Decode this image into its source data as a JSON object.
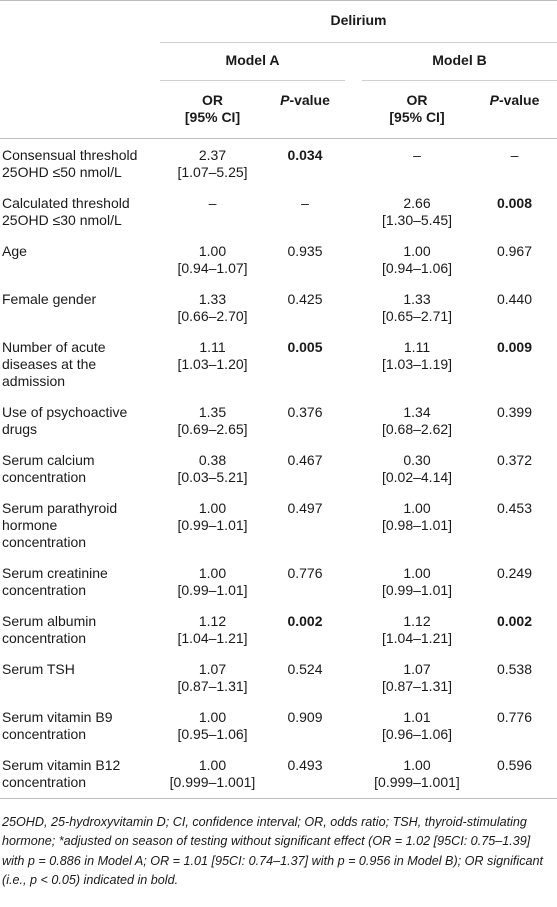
{
  "header": {
    "group": "Delirium",
    "model_a": "Model A",
    "model_b": "Model B",
    "or_label_line1": "OR",
    "or_label_line2": "[95% CI]",
    "p_value_label_p": "P",
    "p_value_label_rest": "-value"
  },
  "rows": [
    {
      "label1": "Consensual threshold",
      "label2": "25OHD ≤50 nmol/L",
      "label3": "",
      "a_or": "2.37",
      "a_ci": "[1.07–5.25]",
      "a_p": "0.034",
      "a_p_bold": true,
      "b_or": "–",
      "b_ci": "",
      "b_p": "–",
      "b_p_bold": false
    },
    {
      "label1": "Calculated threshold",
      "label2": "25OHD ≤30 nmol/L",
      "label3": "",
      "a_or": "–",
      "a_ci": "",
      "a_p": "–",
      "a_p_bold": false,
      "b_or": "2.66",
      "b_ci": "[1.30–5.45]",
      "b_p": "0.008",
      "b_p_bold": true
    },
    {
      "label1": "Age",
      "label2": "",
      "label3": "",
      "a_or": "1.00",
      "a_ci": "[0.94–1.07]",
      "a_p": "0.935",
      "a_p_bold": false,
      "b_or": "1.00",
      "b_ci": "[0.94–1.06]",
      "b_p": "0.967",
      "b_p_bold": false
    },
    {
      "label1": "Female gender",
      "label2": "",
      "label3": "",
      "a_or": "1.33",
      "a_ci": "[0.66–2.70]",
      "a_p": "0.425",
      "a_p_bold": false,
      "b_or": "1.33",
      "b_ci": "[0.65–2.71]",
      "b_p": "0.440",
      "b_p_bold": false
    },
    {
      "label1": "Number of acute",
      "label2": "diseases at the",
      "label3": "admission",
      "a_or": "1.11",
      "a_ci": "[1.03–1.20]",
      "a_p": "0.005",
      "a_p_bold": true,
      "b_or": "1.11",
      "b_ci": "[1.03–1.19]",
      "b_p": "0.009",
      "b_p_bold": true
    },
    {
      "label1": "Use of psychoactive",
      "label2": "drugs",
      "label3": "",
      "a_or": "1.35",
      "a_ci": "[0.69–2.65]",
      "a_p": "0.376",
      "a_p_bold": false,
      "b_or": "1.34",
      "b_ci": "[0.68–2.62]",
      "b_p": "0.399",
      "b_p_bold": false
    },
    {
      "label1": "Serum calcium",
      "label2": "concentration",
      "label3": "",
      "a_or": "0.38",
      "a_ci": "[0.03–5.21]",
      "a_p": "0.467",
      "a_p_bold": false,
      "b_or": "0.30",
      "b_ci": "[0.02–4.14]",
      "b_p": "0.372",
      "b_p_bold": false
    },
    {
      "label1": "Serum parathyroid",
      "label2": "hormone",
      "label3": "concentration",
      "a_or": "1.00",
      "a_ci": "[0.99–1.01]",
      "a_p": "0.497",
      "a_p_bold": false,
      "b_or": "1.00",
      "b_ci": "[0.98–1.01]",
      "b_p": "0.453",
      "b_p_bold": false
    },
    {
      "label1": "Serum creatinine",
      "label2": "concentration",
      "label3": "",
      "a_or": "1.00",
      "a_ci": "[0.99–1.01]",
      "a_p": "0.776",
      "a_p_bold": false,
      "b_or": "1.00",
      "b_ci": "[0.99–1.01]",
      "b_p": "0.249",
      "b_p_bold": false
    },
    {
      "label1": "Serum albumin",
      "label2": "concentration",
      "label3": "",
      "a_or": "1.12",
      "a_ci": "[1.04–1.21]",
      "a_p": "0.002",
      "a_p_bold": true,
      "b_or": "1.12",
      "b_ci": "[1.04–1.21]",
      "b_p": "0.002",
      "b_p_bold": true
    },
    {
      "label1": "Serum TSH",
      "label2": "",
      "label3": "",
      "a_or": "1.07",
      "a_ci": "[0.87–1.31]",
      "a_p": "0.524",
      "a_p_bold": false,
      "b_or": "1.07",
      "b_ci": "[0.87–1.31]",
      "b_p": "0.538",
      "b_p_bold": false
    },
    {
      "label1": "Serum vitamin B9",
      "label2": "concentration",
      "label3": "",
      "a_or": "1.00",
      "a_ci": "[0.95–1.06]",
      "a_p": "0.909",
      "a_p_bold": false,
      "b_or": "1.01",
      "b_ci": "[0.96–1.06]",
      "b_p": "0.776",
      "b_p_bold": false
    },
    {
      "label1": "Serum vitamin B12",
      "label2": "concentration",
      "label3": "",
      "a_or": "1.00",
      "a_ci": "[0.999–1.001]",
      "a_p": "0.493",
      "a_p_bold": false,
      "b_or": "1.00",
      "b_ci": "[0.999–1.001]",
      "b_p": "0.596",
      "b_p_bold": false
    }
  ],
  "footnote": "25OHD, 25-hydroxyvitamin D; CI, confidence interval; OR, odds ratio; TSH, thyroid-stimulating hormone; *adjusted on season of testing without significant effect (OR = 1.02 [95CI: 0.75–1.39] with p = 0.886 in Model A; OR = 1.01 [95CI: 0.74–1.37] with p = 0.956 in Model B); OR significant (i.e., p < 0.05) indicated in bold."
}
